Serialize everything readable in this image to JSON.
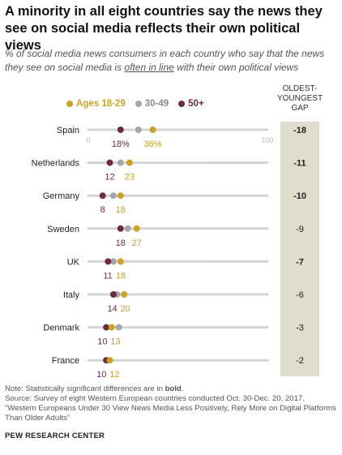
{
  "title": "A minority in all eight countries say the news they see on social media reflects their own political views",
  "subtitle": {
    "before": "% of social media news consumers in each country who say that the news they see on social media is ",
    "underlined": "often in line",
    "after": " with their own political views"
  },
  "legend": {
    "items": [
      {
        "label": "Ages 18-29",
        "color": "#c9a227"
      },
      {
        "label": "30-49",
        "color": "#a6a6a6"
      },
      {
        "label": "50+",
        "color": "#6e2c41"
      }
    ]
  },
  "gap_header": {
    "line1": "OLDEST-",
    "line2": "YOUNGEST",
    "line3": "GAP"
  },
  "chart_data": {
    "type": "dot",
    "xlim": [
      0,
      100
    ],
    "axis_labels": {
      "min": "0",
      "max": "100"
    },
    "series": [
      {
        "name": "Ages 18-29",
        "color": "#c9a227"
      },
      {
        "name": "30-49",
        "color": "#a6a6a6"
      },
      {
        "name": "50+",
        "color": "#6e2c41"
      }
    ],
    "rows": [
      {
        "country": "Spain",
        "young": 36,
        "middle": 28,
        "old": 18,
        "young_label": "36%",
        "old_label": "18%",
        "gap": "-18",
        "gap_bold": true
      },
      {
        "country": "Netherlands",
        "young": 23,
        "middle": 18,
        "old": 12,
        "young_label": "23",
        "old_label": "12",
        "gap": "-11",
        "gap_bold": true
      },
      {
        "country": "Germany",
        "young": 18,
        "middle": 14,
        "old": 8,
        "young_label": "18",
        "old_label": "8",
        "gap": "-10",
        "gap_bold": true
      },
      {
        "country": "Sweden",
        "young": 27,
        "middle": 22,
        "old": 18,
        "young_label": "27",
        "old_label": "18",
        "gap": "-9",
        "gap_bold": false
      },
      {
        "country": "UK",
        "young": 18,
        "middle": 14,
        "old": 11,
        "young_label": "18",
        "old_label": "11",
        "gap": "-7",
        "gap_bold": true
      },
      {
        "country": "Italy",
        "young": 20,
        "middle": 16,
        "old": 14,
        "young_label": "20",
        "old_label": "14",
        "gap": "-6",
        "gap_bold": false
      },
      {
        "country": "Denmark",
        "young": 13,
        "middle": 17,
        "old": 10,
        "young_label": "13",
        "old_label": "10",
        "gap": "-3",
        "gap_bold": false
      },
      {
        "country": "France",
        "young": 12,
        "middle": 11,
        "old": 10,
        "young_label": "12",
        "old_label": "10",
        "gap": "-2",
        "gap_bold": false
      }
    ]
  },
  "notes": {
    "note_prefix": "Note: Statistically significant differences are in ",
    "note_bold": "bold",
    "note_suffix": ".",
    "source": "Source: Survey of eight Western European countries conducted Oct. 30-Dec. 20, 2017.",
    "report": "“Western Europeans Under 30 View News Media Less Positively, Rely More on Digital Platforms Than Older Adults”"
  },
  "organization": "PEW RESEARCH CENTER"
}
